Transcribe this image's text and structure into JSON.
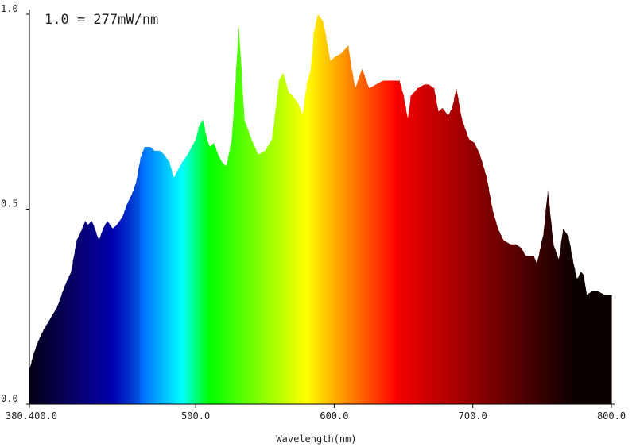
{
  "chart_data": {
    "type": "area",
    "title": "1.0 = 277mW/nm",
    "xlabel": "Wavelength(nm)",
    "ylabel": "",
    "xlim": [
      380,
      800
    ],
    "ylim": [
      0,
      1.0
    ],
    "x_tick_labels": [
      "380.400.0",
      "500.0",
      "600.0",
      "700.0",
      "800.0"
    ],
    "x_ticks": [
      380,
      500,
      600,
      700,
      800
    ],
    "y_tick_labels": [
      "0.0",
      "0.5",
      "1.0"
    ],
    "y_ticks": [
      0,
      0.5,
      1.0
    ],
    "grid": false,
    "fill": "spectrum-colored vertical bands",
    "x": [
      380,
      383,
      386,
      390,
      395,
      400,
      405,
      410,
      414,
      418,
      420,
      422,
      425,
      428,
      430,
      433,
      436,
      440,
      443,
      447,
      450,
      454,
      457,
      460,
      463,
      467,
      470,
      474,
      477,
      481,
      484,
      487,
      490,
      494,
      497,
      500,
      502,
      505,
      508,
      510,
      513,
      516,
      519,
      522,
      526,
      529,
      531,
      533,
      535,
      538,
      540,
      545,
      550,
      555,
      560,
      563,
      567,
      570,
      574,
      577,
      580,
      583,
      585,
      588,
      592,
      594,
      597,
      600,
      605,
      610,
      612,
      615,
      620,
      625,
      630,
      635,
      640,
      643,
      647,
      650,
      653,
      655,
      660,
      665,
      668,
      672,
      675,
      678,
      682,
      685,
      688,
      692,
      697,
      701,
      705,
      710,
      714,
      718,
      722,
      727,
      731,
      735,
      738,
      741,
      744,
      746,
      748,
      751,
      754,
      758,
      762,
      765,
      769,
      772,
      775,
      778,
      780,
      782,
      786,
      790,
      795,
      800
    ],
    "y": [
      0.09,
      0.13,
      0.16,
      0.19,
      0.22,
      0.25,
      0.3,
      0.34,
      0.42,
      0.45,
      0.47,
      0.46,
      0.47,
      0.44,
      0.42,
      0.45,
      0.47,
      0.45,
      0.46,
      0.48,
      0.51,
      0.54,
      0.57,
      0.63,
      0.66,
      0.66,
      0.65,
      0.65,
      0.64,
      0.62,
      0.58,
      0.6,
      0.62,
      0.64,
      0.66,
      0.68,
      0.71,
      0.73,
      0.68,
      0.66,
      0.67,
      0.64,
      0.62,
      0.61,
      0.68,
      0.85,
      0.97,
      0.85,
      0.73,
      0.7,
      0.68,
      0.64,
      0.65,
      0.68,
      0.83,
      0.85,
      0.8,
      0.79,
      0.77,
      0.74,
      0.82,
      0.86,
      0.95,
      1.0,
      0.98,
      0.94,
      0.88,
      0.89,
      0.9,
      0.92,
      0.87,
      0.81,
      0.86,
      0.81,
      0.82,
      0.83,
      0.83,
      0.83,
      0.83,
      0.79,
      0.73,
      0.79,
      0.81,
      0.82,
      0.82,
      0.81,
      0.75,
      0.76,
      0.74,
      0.76,
      0.81,
      0.73,
      0.68,
      0.67,
      0.64,
      0.58,
      0.5,
      0.45,
      0.42,
      0.41,
      0.41,
      0.4,
      0.38,
      0.38,
      0.38,
      0.36,
      0.39,
      0.44,
      0.55,
      0.41,
      0.37,
      0.45,
      0.43,
      0.37,
      0.32,
      0.34,
      0.33,
      0.28,
      0.29,
      0.29,
      0.28,
      0.28
    ]
  }
}
